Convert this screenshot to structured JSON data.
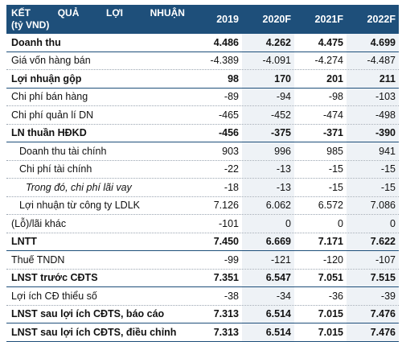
{
  "header": {
    "label_words": [
      "KẾT",
      "QUẢ",
      "LỢI",
      "NHUẬN"
    ],
    "label_unit": "(tỷ VND)",
    "years": [
      "2019",
      "2020F",
      "2021F",
      "2022F"
    ]
  },
  "rows": [
    {
      "label": "Doanh thu",
      "values": [
        "4.486",
        "4.262",
        "4.475",
        "4.699"
      ]
    },
    {
      "label": "Giá vốn hàng bán",
      "values": [
        "-4.389",
        "-4.091",
        "-4.274",
        "-4.487"
      ]
    },
    {
      "label": "Lợi nhuận gộp",
      "values": [
        "98",
        "170",
        "201",
        "211"
      ]
    },
    {
      "label": "Chi phí bán hàng",
      "values": [
        "-89",
        "-94",
        "-98",
        "-103"
      ]
    },
    {
      "label": "Chi phí quản lí DN",
      "values": [
        "-465",
        "-452",
        "-474",
        "-498"
      ]
    },
    {
      "label": "LN thuần HĐKD",
      "values": [
        "-456",
        "-375",
        "-371",
        "-390"
      ]
    },
    {
      "label": "Doanh thu tài chính",
      "values": [
        "903",
        "996",
        "985",
        "941"
      ]
    },
    {
      "label": "Chi phí tài chính",
      "values": [
        "-22",
        "-13",
        "-15",
        "-15"
      ]
    },
    {
      "label": "Trong đó, chi phí lãi vay",
      "values": [
        "-18",
        "-13",
        "-15",
        "-15"
      ]
    },
    {
      "label": "Lợi nhuận từ công ty LDLK",
      "values": [
        "7.126",
        "6.062",
        "6.572",
        "7.086"
      ]
    },
    {
      "label": "(Lỗ)/lãi khác",
      "values": [
        "-101",
        "0",
        "0",
        "0"
      ]
    },
    {
      "label": "LNTT",
      "values": [
        "7.450",
        "6.669",
        "7.171",
        "7.622"
      ]
    },
    {
      "label": "Thuế TNDN",
      "values": [
        "-99",
        "-121",
        "-120",
        "-107"
      ]
    },
    {
      "label": "LNST trước CĐTS",
      "values": [
        "7.351",
        "6.547",
        "7.051",
        "7.515"
      ]
    },
    {
      "label": "Lợi ích CĐ thiểu số",
      "values": [
        "-38",
        "-34",
        "-36",
        "-39"
      ]
    },
    {
      "label": "LNST sau lợi ích CĐTS, báo cáo",
      "values": [
        "7.313",
        "6.514",
        "7.015",
        "7.476"
      ]
    },
    {
      "label": "LNST sau lợi ích CĐTS, điều chỉnh",
      "values": [
        "7.313",
        "6.514",
        "7.015",
        "7.476"
      ]
    }
  ]
}
